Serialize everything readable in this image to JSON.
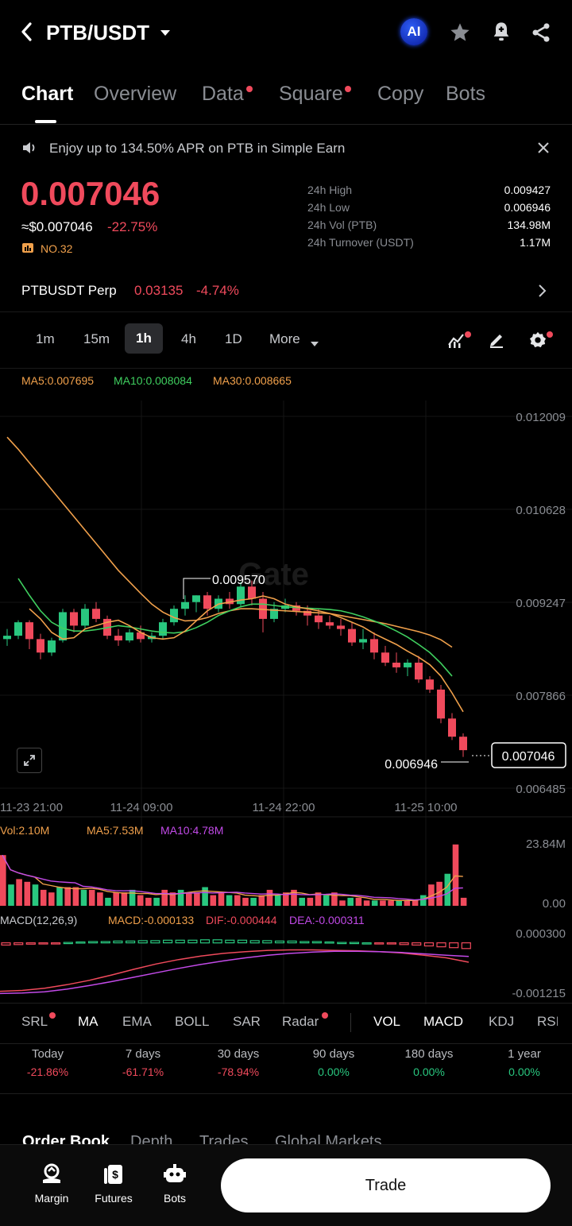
{
  "header": {
    "pair": "PTB/USDT",
    "ai_label": "AI"
  },
  "tabs": [
    {
      "label": "Chart"
    },
    {
      "label": "Overview"
    },
    {
      "label": "Data"
    },
    {
      "label": "Square"
    },
    {
      "label": "Copy"
    },
    {
      "label": "Bots"
    }
  ],
  "banner": {
    "text": "Enjoy up to 134.50% APR on PTB in Simple Earn"
  },
  "price": {
    "last": "0.007046",
    "usd": "≈$0.007046",
    "change": "-22.75%",
    "rank": "NO.32"
  },
  "stats": [
    {
      "label": "24h High",
      "value": "0.009427"
    },
    {
      "label": "24h Low",
      "value": "0.006946"
    },
    {
      "label": "24h Vol (PTB)",
      "value": "134.98M"
    },
    {
      "label": "24h Turnover (USDT)",
      "value": "1.17M"
    }
  ],
  "perp": {
    "name": "PTBUSDT Perp",
    "price": "0.03135",
    "change": "-4.74%"
  },
  "intervals": [
    "1m",
    "15m",
    "1h",
    "4h",
    "1D",
    "More"
  ],
  "ma_legend": {
    "ma5": "MA5:0.007695",
    "ma10": "MA10:0.008084",
    "ma30": "MA30:0.008665"
  },
  "watermark": "Gate",
  "colors": {
    "up": "#29c77f",
    "down": "#f04a5c",
    "ma5": "#f0a04b",
    "ma10": "#3fcf5f",
    "ma30": "#f0a04b",
    "macd_dif": "#f04a5c",
    "macd_dea": "#c24ae8",
    "vol_ma10": "#c24ae8"
  },
  "chart_data": {
    "type": "candlestick",
    "y_ticks": [
      "0.012009",
      "0.010628",
      "0.009247",
      "0.007866",
      "0.006485"
    ],
    "x_ticks": [
      "11-23 21:00",
      "11-24 09:00",
      "11-24 22:00",
      "11-25 10:00"
    ],
    "ylim": [
      0.006485,
      0.012009
    ],
    "high_marker": "0.009570",
    "low_marker": "0.006946",
    "last_price_tag": "0.007046",
    "candles": [
      [
        0.0087,
        0.00885,
        0.0086,
        0.00875
      ],
      [
        0.00875,
        0.00898,
        0.0087,
        0.00895
      ],
      [
        0.00895,
        0.00898,
        0.00855,
        0.0087
      ],
      [
        0.0087,
        0.00878,
        0.0084,
        0.0085
      ],
      [
        0.0085,
        0.00872,
        0.00845,
        0.00868
      ],
      [
        0.00868,
        0.00915,
        0.00865,
        0.0091
      ],
      [
        0.0091,
        0.00915,
        0.0088,
        0.0089
      ],
      [
        0.0089,
        0.00922,
        0.00885,
        0.00915
      ],
      [
        0.00915,
        0.00925,
        0.00895,
        0.009
      ],
      [
        0.009,
        0.00905,
        0.0087,
        0.00875
      ],
      [
        0.00875,
        0.00885,
        0.0086,
        0.00868
      ],
      [
        0.00868,
        0.00885,
        0.00865,
        0.0088
      ],
      [
        0.0088,
        0.0089,
        0.00865,
        0.0087
      ],
      [
        0.0087,
        0.0088,
        0.00865,
        0.00875
      ],
      [
        0.00875,
        0.009,
        0.0087,
        0.00895
      ],
      [
        0.00895,
        0.0092,
        0.0089,
        0.00915
      ],
      [
        0.00915,
        0.00935,
        0.00905,
        0.00925
      ],
      [
        0.00925,
        0.00935,
        0.0091,
        0.00935
      ],
      [
        0.00935,
        0.0094,
        0.00905,
        0.00915
      ],
      [
        0.00915,
        0.00935,
        0.0091,
        0.0093
      ],
      [
        0.0093,
        0.0094,
        0.00915,
        0.00922
      ],
      [
        0.00922,
        0.00955,
        0.00918,
        0.00948
      ],
      [
        0.00948,
        0.00957,
        0.0092,
        0.0093
      ],
      [
        0.0093,
        0.0094,
        0.0088,
        0.009
      ],
      [
        0.009,
        0.00925,
        0.00895,
        0.00915
      ],
      [
        0.00915,
        0.0093,
        0.0091,
        0.0092
      ],
      [
        0.0092,
        0.00925,
        0.00905,
        0.00912
      ],
      [
        0.00912,
        0.0092,
        0.0089,
        0.00905
      ],
      [
        0.00905,
        0.00915,
        0.00885,
        0.00895
      ],
      [
        0.00895,
        0.00905,
        0.00885,
        0.0089
      ],
      [
        0.0089,
        0.009,
        0.00875,
        0.00885
      ],
      [
        0.00885,
        0.00895,
        0.0086,
        0.00865
      ],
      [
        0.00865,
        0.00885,
        0.00855,
        0.0087
      ],
      [
        0.0087,
        0.0088,
        0.0084,
        0.0085
      ],
      [
        0.0085,
        0.0086,
        0.0083,
        0.00835
      ],
      [
        0.00835,
        0.0085,
        0.0082,
        0.00828
      ],
      [
        0.00828,
        0.0084,
        0.00815,
        0.00835
      ],
      [
        0.00835,
        0.00845,
        0.00805,
        0.0081
      ],
      [
        0.0081,
        0.00815,
        0.0079,
        0.00795
      ],
      [
        0.00795,
        0.00802,
        0.00745,
        0.00752
      ],
      [
        0.00752,
        0.0076,
        0.0072,
        0.00725
      ],
      [
        0.00725,
        0.0073,
        0.00695,
        0.00705
      ]
    ],
    "ma30": [
      0.0117,
      0.01152,
      0.01132,
      0.01112,
      0.01092,
      0.01072,
      0.01052,
      0.01032,
      0.01012,
      0.00992,
      0.00972,
      0.00955,
      0.00938,
      0.00922,
      0.0091,
      0.00902,
      0.00897,
      0.00898,
      0.00902,
      0.00908,
      0.00912,
      0.00915,
      0.00915,
      0.00914,
      0.00913,
      0.00912,
      0.00911,
      0.0091,
      0.00909,
      0.00908,
      0.00905,
      0.00902,
      0.00899,
      0.00896,
      0.00893,
      0.00889,
      0.00885,
      0.00881,
      0.00876,
      0.00869,
      0.00858
    ],
    "ma10": [
      0.0096,
      0.00935,
      0.00912,
      0.00895,
      0.00886,
      0.00882,
      0.00882,
      0.00884,
      0.00887,
      0.0089,
      0.00888,
      0.00885,
      0.00882,
      0.0088,
      0.00879,
      0.00881,
      0.00887,
      0.00895,
      0.00905,
      0.00912,
      0.00918,
      0.00922,
      0.00922,
      0.0092,
      0.00918,
      0.00917,
      0.00916,
      0.00915,
      0.00914,
      0.00912,
      0.00908,
      0.00903,
      0.00897,
      0.0089,
      0.00882,
      0.00873,
      0.00862,
      0.0085,
      0.00834,
      0.00815
    ],
    "ma5": [
      0.00915,
      0.009,
      0.0088,
      0.0087,
      0.00872,
      0.00885,
      0.0089,
      0.00895,
      0.00898,
      0.0089,
      0.0088,
      0.00872,
      0.0087,
      0.00872,
      0.00882,
      0.00897,
      0.00912,
      0.00922,
      0.00925,
      0.00928,
      0.0093,
      0.00934,
      0.0093,
      0.00922,
      0.00918,
      0.00915,
      0.00912,
      0.00908,
      0.00902,
      0.00895,
      0.00888,
      0.00878,
      0.0087,
      0.00862,
      0.00852,
      0.00843,
      0.00832,
      0.00815,
      0.0079,
      0.00762
    ],
    "volume": {
      "legend": {
        "vol": "Vol:2.10M",
        "ma5": "MA5:7.53M",
        "ma10": "MA10:4.78M"
      },
      "ticks": [
        "23.84M",
        "0.00"
      ],
      "max": 23.84,
      "values": [
        19,
        8,
        10,
        9,
        8,
        6,
        5,
        7,
        7,
        7,
        6,
        6,
        5,
        3,
        5,
        5,
        6,
        4,
        3,
        3,
        6,
        5,
        6,
        5,
        5,
        7,
        4,
        5,
        4,
        4,
        3,
        3,
        4,
        6,
        4,
        5,
        6,
        3,
        3,
        5,
        4,
        5,
        2,
        3,
        3,
        2,
        2,
        2,
        2,
        2,
        2,
        2,
        4,
        8,
        9,
        12,
        23,
        3
      ]
    },
    "macd": {
      "legend": {
        "title": "MACD(12,26,9)",
        "macd": "MACD:-0.000133",
        "dif": "DIF:-0.000444",
        "dea": "DEA:-0.000311"
      },
      "ticks": [
        "0.000300",
        "-0.001215"
      ],
      "ylim": [
        -0.001215,
        0.0003
      ],
      "hist": [
        -5e-05,
        -4e-05,
        -3e-05,
        -2e-05,
        -2e-05,
        1e-05,
        2e-05,
        3e-05,
        3e-05,
        4e-05,
        4e-05,
        5e-05,
        5e-05,
        6e-05,
        6e-05,
        6e-05,
        7e-05,
        7e-05,
        6e-05,
        6e-05,
        5e-05,
        5e-05,
        4e-05,
        4e-05,
        3e-05,
        3e-05,
        2e-05,
        1e-05,
        1e-05,
        0,
        -1e-05,
        -2e-05,
        -4e-05,
        -5e-05,
        -7e-05,
        -9e-05,
        -0.00011,
        -0.00013
      ],
      "dif": [
        -0.0011,
        -0.00108,
        -0.00103,
        -0.00095,
        -0.00085,
        -0.00073,
        -0.0006,
        -0.00048,
        -0.00038,
        -0.0003,
        -0.00024,
        -0.0002,
        -0.00017,
        -0.00016,
        -0.00016,
        -0.00017,
        -0.00018,
        -0.0002,
        -0.00023,
        -0.00028,
        -0.00034,
        -0.00044
      ],
      "dea": [
        -0.00115,
        -0.00114,
        -0.00111,
        -0.00105,
        -0.00097,
        -0.00088,
        -0.00078,
        -0.00068,
        -0.00058,
        -0.00049,
        -0.00041,
        -0.00034,
        -0.00028,
        -0.00024,
        -0.00021,
        -0.00019,
        -0.00019,
        -0.0002,
        -0.00022,
        -0.00025,
        -0.00028,
        -0.00031
      ]
    }
  },
  "indicators": {
    "main": [
      "SRL",
      "MA",
      "EMA",
      "BOLL",
      "SAR",
      "Radar"
    ],
    "sub": [
      "VOL",
      "MACD",
      "KDJ",
      "RSI"
    ]
  },
  "performance": [
    {
      "label": "Today",
      "value": "-21.86%"
    },
    {
      "label": "7 days",
      "value": "-61.71%"
    },
    {
      "label": "30 days",
      "value": "-78.94%"
    },
    {
      "label": "90 days",
      "value": "0.00%"
    },
    {
      "label": "180 days",
      "value": "0.00%"
    },
    {
      "label": "1 year",
      "value": "0.00%"
    }
  ],
  "orderbook_tabs": [
    "Order Book",
    "Depth",
    "Trades",
    "Global Markets"
  ],
  "bottom_bar": {
    "margin": "Margin",
    "futures": "Futures",
    "bots": "Bots",
    "trade": "Trade"
  }
}
